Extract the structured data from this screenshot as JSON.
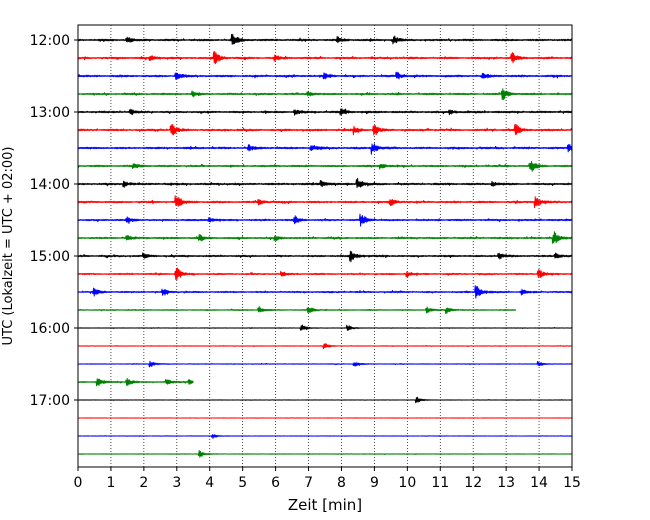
{
  "chart_data": {
    "type": "line",
    "title": "",
    "xlabel": "Zeit  [min]",
    "ylabel": "UTC (Lokalzeit = UTC + 02:00)",
    "xlim": [
      0,
      15
    ],
    "x_ticks": [
      "0",
      "1",
      "2",
      "3",
      "4",
      "5",
      "6",
      "7",
      "8",
      "9",
      "10",
      "11",
      "12",
      "13",
      "14",
      "15"
    ],
    "y_ticks": [
      "12:00",
      "13:00",
      "14:00",
      "15:00",
      "16:00",
      "17:00"
    ],
    "grid": "vertical dotted",
    "trace_interval_min": 15,
    "series_colors": [
      "#000000",
      "#ff0000",
      "#0000ff",
      "#008000"
    ],
    "traces": [
      {
        "start": "12:00",
        "color": "#000000",
        "end_min": 15,
        "amp": 0.9,
        "events": [
          [
            4.7,
            3.0
          ],
          [
            9.6,
            1.8
          ],
          [
            1.5,
            1.2
          ],
          [
            7.9,
            1.0
          ]
        ]
      },
      {
        "start": "12:15",
        "color": "#ff0000",
        "end_min": 15,
        "amp": 0.9,
        "events": [
          [
            4.15,
            3.2
          ],
          [
            13.2,
            2.2
          ],
          [
            2.2,
            1.2
          ],
          [
            6.0,
            1.1
          ]
        ]
      },
      {
        "start": "12:30",
        "color": "#0000ff",
        "end_min": 15,
        "amp": 0.9,
        "events": [
          [
            3.0,
            1.5
          ],
          [
            7.5,
            1.4
          ],
          [
            9.7,
            1.6
          ],
          [
            12.3,
            1.2
          ]
        ]
      },
      {
        "start": "12:45",
        "color": "#008000",
        "end_min": 15,
        "amp": 0.8,
        "events": [
          [
            12.9,
            2.8
          ],
          [
            3.5,
            1.2
          ],
          [
            7.0,
            1.0
          ]
        ]
      },
      {
        "start": "13:00",
        "color": "#000000",
        "end_min": 15,
        "amp": 0.9,
        "events": [
          [
            1.6,
            1.4
          ],
          [
            6.6,
            1.2
          ],
          [
            8.0,
            1.5
          ],
          [
            11.3,
            1.1
          ]
        ]
      },
      {
        "start": "13:15",
        "color": "#ff0000",
        "end_min": 15,
        "amp": 0.9,
        "events": [
          [
            2.85,
            2.8
          ],
          [
            9.0,
            2.2
          ],
          [
            13.3,
            2.5
          ],
          [
            8.4,
            1.6
          ]
        ]
      },
      {
        "start": "13:30",
        "color": "#0000ff",
        "end_min": 15,
        "amp": 0.9,
        "events": [
          [
            8.95,
            2.6
          ],
          [
            7.1,
            1.6
          ],
          [
            14.9,
            1.8
          ],
          [
            5.2,
            1.2
          ]
        ]
      },
      {
        "start": "13:45",
        "color": "#008000",
        "end_min": 15,
        "amp": 0.8,
        "events": [
          [
            13.75,
            3.0
          ],
          [
            1.7,
            1.1
          ],
          [
            9.2,
            1.2
          ]
        ]
      },
      {
        "start": "14:00",
        "color": "#000000",
        "end_min": 15,
        "amp": 0.9,
        "events": [
          [
            8.5,
            2.6
          ],
          [
            7.4,
            1.4
          ],
          [
            1.4,
            1.3
          ],
          [
            12.6,
            1.1
          ]
        ]
      },
      {
        "start": "14:15",
        "color": "#ff0000",
        "end_min": 15,
        "amp": 0.9,
        "events": [
          [
            3.0,
            3.0
          ],
          [
            13.9,
            2.4
          ],
          [
            9.5,
            1.5
          ],
          [
            5.5,
            1.1
          ]
        ]
      },
      {
        "start": "14:30",
        "color": "#0000ff",
        "end_min": 15,
        "amp": 0.8,
        "events": [
          [
            8.6,
            3.0
          ],
          [
            6.6,
            1.6
          ],
          [
            1.5,
            1.2
          ],
          [
            4.0,
            1.0
          ]
        ]
      },
      {
        "start": "14:45",
        "color": "#008000",
        "end_min": 15,
        "amp": 0.8,
        "events": [
          [
            14.45,
            3.4
          ],
          [
            3.7,
            1.3
          ],
          [
            1.5,
            1.2
          ],
          [
            6.0,
            1.1
          ]
        ]
      },
      {
        "start": "15:00",
        "color": "#000000",
        "end_min": 15,
        "amp": 0.8,
        "events": [
          [
            8.3,
            2.4
          ],
          [
            2.0,
            1.3
          ],
          [
            12.8,
            1.2
          ],
          [
            14.5,
            1.4
          ]
        ]
      },
      {
        "start": "15:15",
        "color": "#ff0000",
        "end_min": 15,
        "amp": 0.7,
        "events": [
          [
            3.0,
            3.0
          ],
          [
            14.0,
            2.0
          ],
          [
            10.0,
            1.3
          ],
          [
            6.2,
            1.0
          ]
        ]
      },
      {
        "start": "15:30",
        "color": "#0000ff",
        "end_min": 15,
        "amp": 0.7,
        "events": [
          [
            12.1,
            3.0
          ],
          [
            0.5,
            1.6
          ],
          [
            2.6,
            1.2
          ],
          [
            13.5,
            1.1
          ]
        ]
      },
      {
        "start": "15:45",
        "color": "#008000",
        "end_min": 13.3,
        "amp": 0.5,
        "events": [
          [
            7.0,
            1.6
          ],
          [
            5.5,
            1.4
          ],
          [
            10.6,
            1.2
          ],
          [
            11.2,
            1.4
          ]
        ]
      },
      {
        "start": "16:00",
        "color": "#000000",
        "end_min": 15,
        "amp": 0.25,
        "events": [
          [
            6.8,
            1.5
          ],
          [
            8.2,
            1.2
          ]
        ]
      },
      {
        "start": "16:15",
        "color": "#ff0000",
        "end_min": 15,
        "amp": 0.25,
        "events": [
          [
            7.5,
            1.2
          ]
        ]
      },
      {
        "start": "16:30",
        "color": "#0000ff",
        "end_min": 15,
        "amp": 0.3,
        "events": [
          [
            2.2,
            1.3
          ],
          [
            8.4,
            1.2
          ],
          [
            14.0,
            1.1
          ]
        ]
      },
      {
        "start": "16:45",
        "color": "#008000",
        "end_min": 3.5,
        "amp": 0.6,
        "events": [
          [
            0.6,
            1.8
          ],
          [
            1.5,
            1.6
          ],
          [
            2.7,
            1.2
          ],
          [
            3.4,
            1.1
          ]
        ]
      },
      {
        "start": "17:00",
        "color": "#000000",
        "end_min": 15,
        "amp": 0.2,
        "events": [
          [
            10.3,
            1.3
          ]
        ]
      },
      {
        "start": "17:15",
        "color": "#ff0000",
        "end_min": 15,
        "amp": 0.15,
        "events": []
      },
      {
        "start": "17:30",
        "color": "#0000ff",
        "end_min": 15,
        "amp": 0.2,
        "events": [
          [
            4.1,
            1.0
          ]
        ]
      },
      {
        "start": "17:45",
        "color": "#008000",
        "end_min": 15,
        "amp": 0.25,
        "events": [
          [
            3.7,
            1.6
          ]
        ]
      }
    ]
  }
}
